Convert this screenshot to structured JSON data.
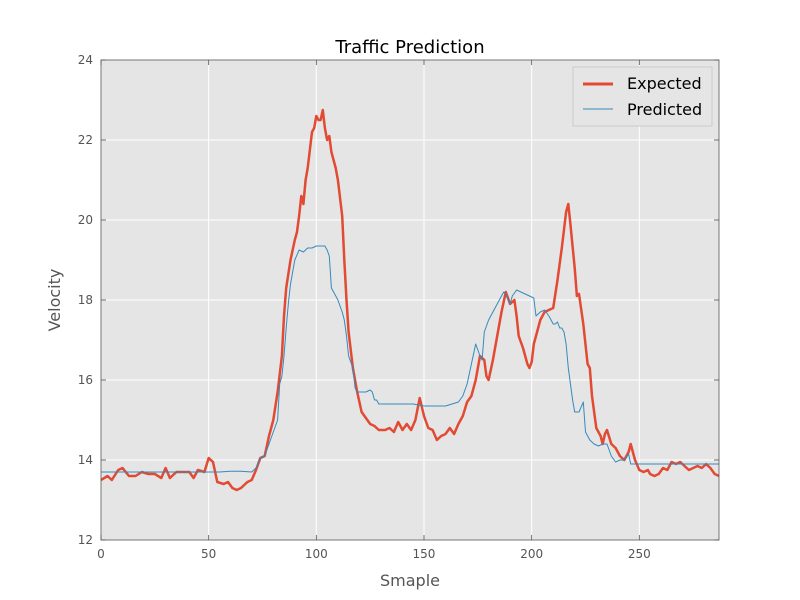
{
  "chart_data": {
    "type": "line",
    "title": "Traffic Prediction",
    "xlabel": "Smaple",
    "ylabel": "Velocity",
    "xlim": [
      0,
      287
    ],
    "ylim": [
      12,
      24
    ],
    "x_ticks": [
      0,
      50,
      100,
      150,
      200,
      250
    ],
    "y_ticks": [
      12,
      14,
      16,
      18,
      20,
      22,
      24
    ],
    "grid": true,
    "legend_position": "top-right",
    "series": [
      {
        "name": "Expected",
        "color": "#e24a33",
        "points": [
          [
            0,
            13.5
          ],
          [
            3,
            13.6
          ],
          [
            5,
            13.5
          ],
          [
            8,
            13.75
          ],
          [
            10,
            13.8
          ],
          [
            13,
            13.6
          ],
          [
            16,
            13.6
          ],
          [
            19,
            13.7
          ],
          [
            22,
            13.65
          ],
          [
            25,
            13.65
          ],
          [
            28,
            13.55
          ],
          [
            30,
            13.8
          ],
          [
            32,
            13.55
          ],
          [
            35,
            13.7
          ],
          [
            38,
            13.7
          ],
          [
            41,
            13.7
          ],
          [
            43,
            13.55
          ],
          [
            45,
            13.75
          ],
          [
            48,
            13.7
          ],
          [
            50,
            14.05
          ],
          [
            52,
            13.95
          ],
          [
            54,
            13.45
          ],
          [
            57,
            13.4
          ],
          [
            59,
            13.45
          ],
          [
            61,
            13.3
          ],
          [
            63,
            13.25
          ],
          [
            65,
            13.3
          ],
          [
            68,
            13.45
          ],
          [
            70,
            13.5
          ],
          [
            72,
            13.75
          ],
          [
            74,
            14.05
          ],
          [
            76,
            14.1
          ],
          [
            78,
            14.6
          ],
          [
            80,
            15.0
          ],
          [
            82,
            15.7
          ],
          [
            84,
            16.6
          ],
          [
            85,
            17.6
          ],
          [
            86,
            18.3
          ],
          [
            88,
            19.0
          ],
          [
            90,
            19.5
          ],
          [
            91,
            19.7
          ],
          [
            92,
            20.1
          ],
          [
            93,
            20.6
          ],
          [
            94,
            20.4
          ],
          [
            95,
            21.0
          ],
          [
            96,
            21.3
          ],
          [
            98,
            22.2
          ],
          [
            99,
            22.3
          ],
          [
            100,
            22.6
          ],
          [
            101,
            22.5
          ],
          [
            102,
            22.5
          ],
          [
            103,
            22.75
          ],
          [
            104,
            22.3
          ],
          [
            105,
            22.0
          ],
          [
            106,
            22.1
          ],
          [
            107,
            21.7
          ],
          [
            109,
            21.3
          ],
          [
            110,
            21.0
          ],
          [
            112,
            20.1
          ],
          [
            113,
            19.0
          ],
          [
            114,
            18.0
          ],
          [
            115,
            17.2
          ],
          [
            117,
            16.3
          ],
          [
            119,
            15.7
          ],
          [
            121,
            15.2
          ],
          [
            123,
            15.05
          ],
          [
            125,
            14.9
          ],
          [
            127,
            14.85
          ],
          [
            129,
            14.75
          ],
          [
            132,
            14.75
          ],
          [
            134,
            14.8
          ],
          [
            136,
            14.7
          ],
          [
            138,
            14.95
          ],
          [
            140,
            14.75
          ],
          [
            142,
            14.9
          ],
          [
            144,
            14.75
          ],
          [
            146,
            15.0
          ],
          [
            148,
            15.55
          ],
          [
            150,
            15.1
          ],
          [
            152,
            14.8
          ],
          [
            154,
            14.75
          ],
          [
            156,
            14.5
          ],
          [
            158,
            14.6
          ],
          [
            160,
            14.65
          ],
          [
            162,
            14.8
          ],
          [
            164,
            14.65
          ],
          [
            166,
            14.9
          ],
          [
            168,
            15.1
          ],
          [
            170,
            15.45
          ],
          [
            172,
            15.6
          ],
          [
            174,
            16.0
          ],
          [
            176,
            16.6
          ],
          [
            178,
            16.5
          ],
          [
            179,
            16.1
          ],
          [
            180,
            16.0
          ],
          [
            182,
            16.5
          ],
          [
            184,
            17.1
          ],
          [
            186,
            17.7
          ],
          [
            188,
            18.2
          ],
          [
            190,
            17.9
          ],
          [
            192,
            18.0
          ],
          [
            193,
            17.6
          ],
          [
            194,
            17.1
          ],
          [
            196,
            16.8
          ],
          [
            198,
            16.4
          ],
          [
            199,
            16.3
          ],
          [
            200,
            16.45
          ],
          [
            201,
            16.9
          ],
          [
            202,
            17.1
          ],
          [
            204,
            17.5
          ],
          [
            206,
            17.7
          ],
          [
            208,
            17.75
          ],
          [
            210,
            17.8
          ],
          [
            212,
            18.5
          ],
          [
            214,
            19.3
          ],
          [
            216,
            20.2
          ],
          [
            217,
            20.4
          ],
          [
            218,
            19.9
          ],
          [
            220,
            18.8
          ],
          [
            221,
            18.1
          ],
          [
            222,
            18.15
          ],
          [
            224,
            17.4
          ],
          [
            226,
            16.4
          ],
          [
            227,
            16.3
          ],
          [
            228,
            15.6
          ],
          [
            230,
            14.8
          ],
          [
            232,
            14.6
          ],
          [
            233,
            14.4
          ],
          [
            234,
            14.65
          ],
          [
            235,
            14.75
          ],
          [
            237,
            14.4
          ],
          [
            239,
            14.3
          ],
          [
            241,
            14.1
          ],
          [
            243,
            14.0
          ],
          [
            245,
            14.2
          ],
          [
            246,
            14.4
          ],
          [
            248,
            14.0
          ],
          [
            250,
            13.75
          ],
          [
            252,
            13.7
          ],
          [
            254,
            13.75
          ],
          [
            255,
            13.65
          ],
          [
            257,
            13.6
          ],
          [
            259,
            13.65
          ],
          [
            261,
            13.8
          ],
          [
            263,
            13.75
          ],
          [
            265,
            13.95
          ],
          [
            267,
            13.9
          ],
          [
            269,
            13.95
          ],
          [
            271,
            13.85
          ],
          [
            273,
            13.75
          ],
          [
            275,
            13.8
          ],
          [
            277,
            13.85
          ],
          [
            279,
            13.8
          ],
          [
            281,
            13.9
          ],
          [
            283,
            13.8
          ],
          [
            285,
            13.65
          ],
          [
            287,
            13.6
          ]
        ]
      },
      {
        "name": "Predicted",
        "color": "#348abd",
        "points": [
          [
            0,
            13.7
          ],
          [
            20,
            13.7
          ],
          [
            40,
            13.7
          ],
          [
            55,
            13.7
          ],
          [
            60,
            13.72
          ],
          [
            65,
            13.72
          ],
          [
            70,
            13.7
          ],
          [
            72,
            13.8
          ],
          [
            74,
            14.05
          ],
          [
            76,
            14.1
          ],
          [
            78,
            14.4
          ],
          [
            80,
            14.7
          ],
          [
            82,
            15.0
          ],
          [
            83,
            15.9
          ],
          [
            84,
            16.1
          ],
          [
            85,
            16.6
          ],
          [
            86,
            17.3
          ],
          [
            87,
            17.9
          ],
          [
            88,
            18.4
          ],
          [
            90,
            19.0
          ],
          [
            92,
            19.25
          ],
          [
            94,
            19.2
          ],
          [
            96,
            19.3
          ],
          [
            98,
            19.3
          ],
          [
            100,
            19.35
          ],
          [
            104,
            19.35
          ],
          [
            105,
            19.25
          ],
          [
            106,
            19.1
          ],
          [
            107,
            18.3
          ],
          [
            108,
            18.2
          ],
          [
            110,
            18.0
          ],
          [
            112,
            17.7
          ],
          [
            113,
            17.5
          ],
          [
            114,
            17.1
          ],
          [
            115,
            16.6
          ],
          [
            117,
            16.3
          ],
          [
            118,
            15.8
          ],
          [
            119,
            15.7
          ],
          [
            121,
            15.7
          ],
          [
            123,
            15.7
          ],
          [
            125,
            15.75
          ],
          [
            126,
            15.7
          ],
          [
            127,
            15.5
          ],
          [
            128,
            15.5
          ],
          [
            129,
            15.4
          ],
          [
            135,
            15.4
          ],
          [
            140,
            15.4
          ],
          [
            145,
            15.4
          ],
          [
            150,
            15.35
          ],
          [
            155,
            15.35
          ],
          [
            160,
            15.35
          ],
          [
            163,
            15.4
          ],
          [
            166,
            15.45
          ],
          [
            168,
            15.6
          ],
          [
            170,
            15.9
          ],
          [
            172,
            16.4
          ],
          [
            174,
            16.9
          ],
          [
            176,
            16.6
          ],
          [
            177,
            16.5
          ],
          [
            178,
            17.2
          ],
          [
            180,
            17.5
          ],
          [
            182,
            17.7
          ],
          [
            184,
            17.9
          ],
          [
            186,
            18.1
          ],
          [
            187,
            18.2
          ],
          [
            188,
            18.15
          ],
          [
            190,
            17.9
          ],
          [
            191,
            18.1
          ],
          [
            193,
            18.25
          ],
          [
            195,
            18.2
          ],
          [
            197,
            18.15
          ],
          [
            199,
            18.1
          ],
          [
            201,
            18.05
          ],
          [
            202,
            17.6
          ],
          [
            204,
            17.7
          ],
          [
            206,
            17.75
          ],
          [
            208,
            17.6
          ],
          [
            210,
            17.4
          ],
          [
            211,
            17.4
          ],
          [
            212,
            17.45
          ],
          [
            213,
            17.3
          ],
          [
            214,
            17.3
          ],
          [
            215,
            17.2
          ],
          [
            216,
            16.9
          ],
          [
            217,
            16.3
          ],
          [
            219,
            15.5
          ],
          [
            220,
            15.2
          ],
          [
            222,
            15.2
          ],
          [
            224,
            15.45
          ],
          [
            225,
            14.7
          ],
          [
            227,
            14.5
          ],
          [
            229,
            14.4
          ],
          [
            231,
            14.35
          ],
          [
            233,
            14.4
          ],
          [
            235,
            14.4
          ],
          [
            237,
            14.1
          ],
          [
            239,
            13.95
          ],
          [
            241,
            14.0
          ],
          [
            243,
            14.0
          ],
          [
            245,
            14.15
          ],
          [
            246,
            13.9
          ],
          [
            250,
            13.9
          ],
          [
            255,
            13.9
          ],
          [
            260,
            13.9
          ],
          [
            265,
            13.9
          ],
          [
            270,
            13.9
          ],
          [
            275,
            13.9
          ],
          [
            280,
            13.9
          ],
          [
            285,
            13.9
          ],
          [
            287,
            13.9
          ]
        ]
      }
    ]
  }
}
